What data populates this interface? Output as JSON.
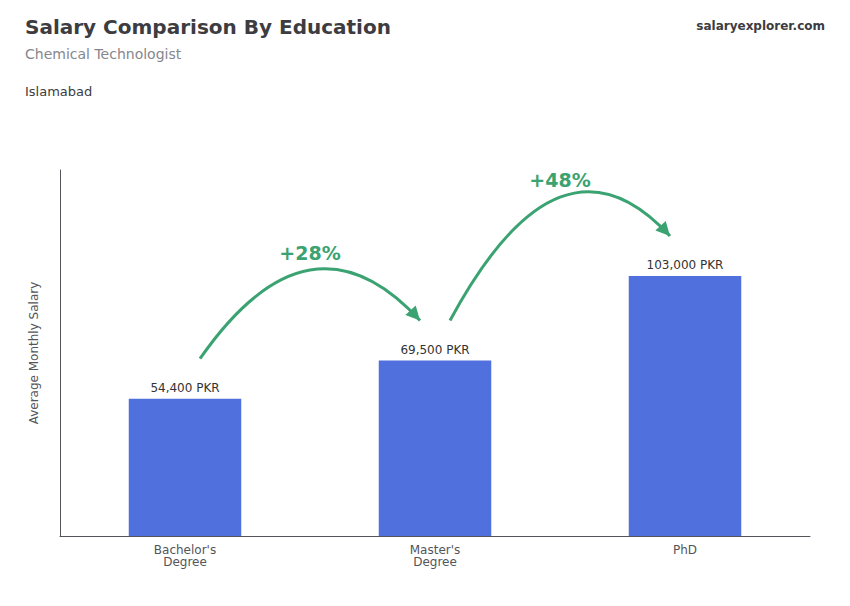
{
  "chart_data": {
    "type": "bar",
    "title": "Salary Comparison By Education",
    "subtitle": "Chemical Technologist",
    "location": "Islamabad",
    "watermark": [
      "salary",
      "explorer",
      ".com"
    ],
    "ylabel": "Average Monthly Salary",
    "categories": [
      "Bachelor's\nDegree",
      "Master's\nDegree",
      "PhD"
    ],
    "values": [
      54400,
      69500,
      103000
    ],
    "value_labels": [
      "54,400 PKR",
      "69,500 PKR",
      "103,000 PKR"
    ],
    "data_labels": true,
    "ylim": [
      0,
      145000
    ],
    "yticks": [],
    "grid": false,
    "tick_labels": "x",
    "annotations": [
      {
        "text": "+28%",
        "from": "Bachelor's\nDegree",
        "to": "Master's\nDegree",
        "color": "#3ba272"
      },
      {
        "text": "+48%",
        "from": "Master's\nDegree",
        "to": "PhD",
        "color": "#3ba272"
      }
    ]
  }
}
